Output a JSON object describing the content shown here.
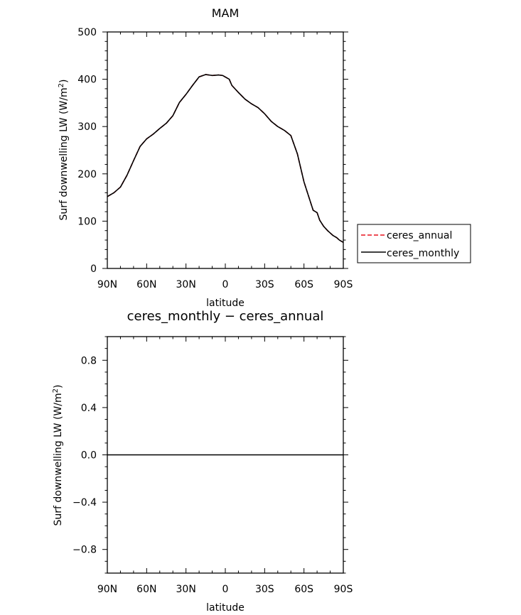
{
  "chart_data": [
    {
      "type": "line",
      "title": "MAM",
      "xlabel": "latitude",
      "ylabel": "Surf downwelling LW (W/m²)",
      "ylabel_main": "Surf downwelling LW (W/m",
      "ylabel_sup": "2",
      "ylabel_tail": ")",
      "x_axis_direction": "90N to 90S",
      "xlim": [
        90,
        -90
      ],
      "ylim": [
        0,
        500
      ],
      "x_ticks": [
        90,
        60,
        30,
        0,
        -30,
        -60,
        -90
      ],
      "x_tick_labels": [
        "90N",
        "60N",
        "30N",
        "0",
        "30S",
        "60S",
        "90S"
      ],
      "y_ticks": [
        0,
        100,
        200,
        300,
        400,
        500
      ],
      "y_tick_labels": [
        "0",
        "100",
        "200",
        "300",
        "400",
        "500"
      ],
      "grid": false,
      "legend_placement": "outside-right",
      "x": [
        90,
        85,
        80,
        75,
        70,
        65,
        60,
        55,
        50,
        45,
        40,
        35,
        30,
        25,
        20,
        15,
        10,
        5,
        2,
        -3,
        -5,
        -10,
        -15,
        -20,
        -25,
        -30,
        -35,
        -40,
        -45,
        -50,
        -55,
        -60,
        -65,
        -67,
        -70,
        -72,
        -75,
        -78,
        -80,
        -82,
        -85,
        -87,
        -90
      ],
      "series": [
        {
          "name": "ceres_annual",
          "color": "#e8141e",
          "dash": true,
          "values": [
            152,
            160,
            172,
            197,
            228,
            258,
            274,
            284,
            296,
            307,
            323,
            351,
            368,
            387,
            405,
            410,
            408,
            409,
            408,
            400,
            387,
            372,
            358,
            348,
            340,
            327,
            311,
            300,
            292,
            281,
            242,
            183,
            140,
            123,
            118,
            102,
            89,
            80,
            75,
            70,
            65,
            60,
            55
          ]
        },
        {
          "name": "ceres_monthly",
          "color": "#000000",
          "dash": false,
          "values": [
            152,
            160,
            172,
            197,
            228,
            258,
            274,
            284,
            296,
            307,
            323,
            351,
            368,
            387,
            405,
            410,
            408,
            409,
            408,
            400,
            387,
            372,
            358,
            348,
            340,
            327,
            311,
            300,
            292,
            281,
            242,
            183,
            140,
            123,
            118,
            102,
            89,
            80,
            75,
            70,
            65,
            60,
            55
          ]
        }
      ]
    },
    {
      "type": "line",
      "title": "ceres_monthly − ceres_annual",
      "xlabel": "latitude",
      "ylabel": "Surf downwelling LW (W/m²)",
      "ylabel_main": "Surf downwelling LW (W/m",
      "ylabel_sup": "2",
      "ylabel_tail": ")",
      "xlim": [
        90,
        -90
      ],
      "ylim": [
        -1,
        1
      ],
      "x_ticks": [
        90,
        60,
        30,
        0,
        -30,
        -60,
        -90
      ],
      "x_tick_labels": [
        "90N",
        "60N",
        "30N",
        "0",
        "30S",
        "60S",
        "90S"
      ],
      "y_ticks": [
        -0.8,
        -0.4,
        0.0,
        0.4,
        0.8
      ],
      "y_tick_labels": [
        "−0.8",
        "−0.4",
        "0.0",
        "0.4",
        "0.8"
      ],
      "grid": false,
      "x": [
        90,
        -90
      ],
      "series": [
        {
          "name": "",
          "color": "#000000",
          "values": [
            0,
            0
          ]
        }
      ]
    }
  ]
}
